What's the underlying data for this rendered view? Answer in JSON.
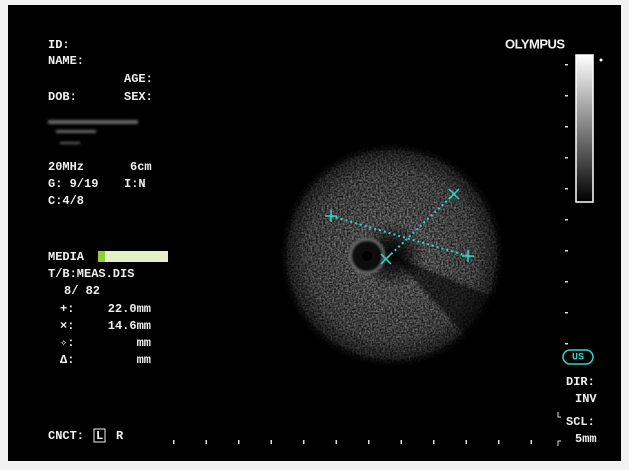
{
  "patient": {
    "id_label": "ID:",
    "name_label": "NAME:",
    "age_label": "AGE:",
    "dob_label": "DOB:",
    "sex_label": "SEX:"
  },
  "settings": {
    "frequency": "20MHz",
    "depth": "6cm",
    "gain": "G: 9/19",
    "image": "I:N",
    "contrast": "C:4/8"
  },
  "media": {
    "label": "MEDIA"
  },
  "measurement": {
    "mode": "T/B:MEAS.DIS",
    "count": "8/ 82",
    "rows": [
      {
        "symbol": "+:",
        "value": "22.0mm"
      },
      {
        "symbol": "×:",
        "value": "14.6mm"
      },
      {
        "symbol": "✧:",
        "value": "mm"
      },
      {
        "symbol": "Δ:",
        "value": "mm"
      }
    ]
  },
  "connection": {
    "label": "CNCT:",
    "left": "L",
    "right": "R"
  },
  "brand": "OLYMPUS",
  "mode_badge": "US",
  "direction": {
    "label": "DIR:",
    "value": "INV"
  },
  "scale": {
    "label": "SCL:",
    "value": "5mm"
  }
}
